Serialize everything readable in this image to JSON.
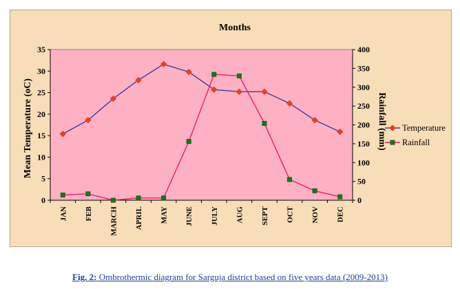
{
  "caption": {
    "label": "Fig. 2:",
    "text": "Ombrothermic diagram for Sarguja district based on five years data (2009-2013)"
  },
  "colors": {
    "background": "#f7ddb8",
    "plot_area": "#ffb1c4",
    "temperature_line": "#3c3c9c",
    "temperature_marker": "#e8401c",
    "rainfall_line": "#ee1a6e",
    "rainfall_marker": "#157815"
  },
  "chart_data": {
    "type": "line",
    "title": "Months",
    "categories": [
      "JAN",
      "FEB",
      "MARCH",
      "APRIL",
      "MAY",
      "JUNE",
      "JULY",
      "AUG",
      "SEPT",
      "OCT",
      "NOV",
      "DEC"
    ],
    "y_left": {
      "label": "Mean Temperature (oC)",
      "range": [
        0,
        35
      ],
      "ticks": [
        "0",
        "5",
        "10",
        "15",
        "20",
        "25",
        "30",
        "35"
      ],
      "tick_values": [
        0,
        5,
        10,
        15,
        20,
        25,
        30,
        35
      ]
    },
    "y_right": {
      "label": "Rainfall (mm)",
      "range": [
        0,
        400
      ],
      "ticks": [
        "0",
        "50",
        "100",
        "150",
        "200",
        "250",
        "300",
        "350",
        "400"
      ],
      "tick_values": [
        0,
        50,
        100,
        150,
        200,
        250,
        300,
        350,
        400
      ]
    },
    "series": [
      {
        "name": "Temperature",
        "axis": "left",
        "marker": "diamond",
        "values": [
          15.4,
          18.6,
          23.6,
          27.9,
          31.6,
          29.8,
          25.7,
          25.2,
          25.2,
          22.5,
          18.6,
          15.9
        ]
      },
      {
        "name": "Rainfall",
        "axis": "right",
        "marker": "square",
        "values": [
          14,
          17,
          0,
          6,
          6,
          156,
          334,
          330,
          204,
          55,
          25,
          9
        ]
      }
    ],
    "grid": false,
    "legend_position": "right"
  }
}
